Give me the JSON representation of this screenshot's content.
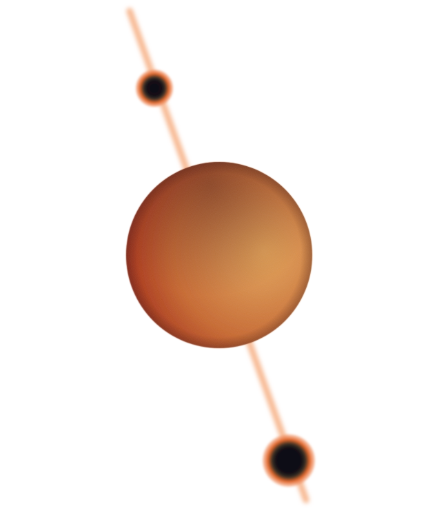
{
  "illustration": {
    "colors": {
      "background": "#ffffff",
      "beam": "#f6a777",
      "planet_highlight": "#e5a152",
      "planet_mid": "#c8652b",
      "planet_dark": "#a3260f",
      "planet_shadow": "#5a2417",
      "moon_core": "#0d0c12",
      "moon_ring": "#e4682c"
    }
  }
}
